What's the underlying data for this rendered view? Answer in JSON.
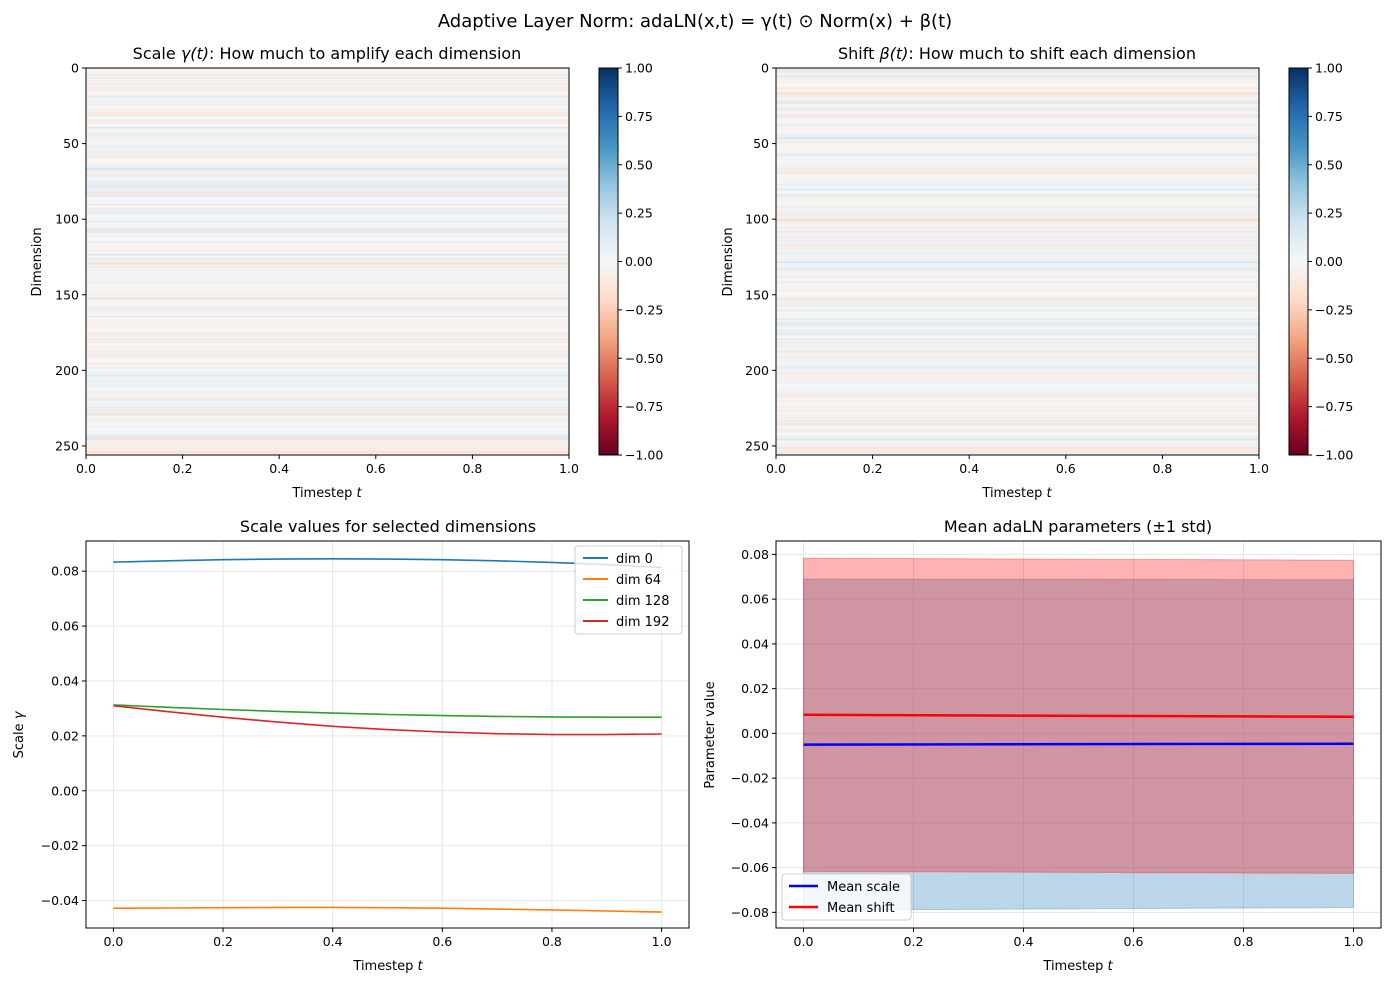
{
  "suptitle": "Adaptive Layer Norm: adaLN(x,t) = γ(t) ⊙ Norm(x) + β(t)",
  "colors": {
    "dim0": "#1f77b4",
    "dim64": "#ff7f0e",
    "dim128": "#2ca02c",
    "dim192": "#d62728",
    "mean_scale": "#0000ff",
    "mean_shift": "#ff0000",
    "band_scale": "#1f77b4",
    "band_shift": "#ff0000",
    "grid": "#e6e6e6"
  },
  "chart_data": [
    {
      "type": "heatmap",
      "title_prefix": "Scale ",
      "title_symbol": "γ(t)",
      "title_suffix": ": How much to amplify each dimension",
      "xlabel": "Timestep",
      "xlabel_var": "t",
      "ylabel": "Dimension",
      "xlim": [
        0.0,
        1.0
      ],
      "ylim": [
        256,
        0
      ],
      "xticks": [
        "0.0",
        "0.2",
        "0.4",
        "0.6",
        "0.8",
        "1.0"
      ],
      "yticks": [
        "0",
        "50",
        "100",
        "150",
        "200",
        "250"
      ],
      "colormap": "RdBu",
      "vmin": -1.0,
      "vmax": 1.0,
      "colorbar_ticks": [
        "1.00",
        "0.75",
        "0.50",
        "0.25",
        "0.00",
        "−0.25",
        "−0.50",
        "−0.75",
        "−1.00"
      ],
      "n_dims": 256,
      "value_std": 0.07,
      "seed": 17
    },
    {
      "type": "heatmap",
      "title_prefix": "Shift ",
      "title_symbol": "β(t)",
      "title_suffix": ": How much to shift each dimension",
      "xlabel": "Timestep",
      "xlabel_var": "t",
      "ylabel": "Dimension",
      "xlim": [
        0.0,
        1.0
      ],
      "ylim": [
        256,
        0
      ],
      "xticks": [
        "0.0",
        "0.2",
        "0.4",
        "0.6",
        "0.8",
        "1.0"
      ],
      "yticks": [
        "0",
        "50",
        "100",
        "150",
        "200",
        "250"
      ],
      "colormap": "RdBu",
      "vmin": -1.0,
      "vmax": 1.0,
      "colorbar_ticks": [
        "1.00",
        "0.75",
        "0.50",
        "0.25",
        "0.00",
        "−0.25",
        "−0.50",
        "−0.75",
        "−1.00"
      ],
      "n_dims": 256,
      "value_std": 0.07,
      "seed": 91
    },
    {
      "type": "line",
      "title": "Scale values for selected dimensions",
      "xlabel": "Timestep",
      "xlabel_var": "t",
      "ylabel": "Scale",
      "ylabel_var": "γ",
      "xlim": [
        -0.05,
        1.05
      ],
      "ylim": [
        -0.05,
        0.091
      ],
      "xticks": [
        "0.0",
        "0.2",
        "0.4",
        "0.6",
        "0.8",
        "1.0"
      ],
      "yticks": [
        "−0.04",
        "−0.02",
        "0.00",
        "0.02",
        "0.04",
        "0.06",
        "0.08"
      ],
      "grid": true,
      "legend": "top-right",
      "x": [
        0.0,
        0.1,
        0.2,
        0.3,
        0.4,
        0.5,
        0.6,
        0.7,
        0.8,
        0.9,
        1.0
      ],
      "series": [
        {
          "name": "dim 0",
          "values": [
            0.0833,
            0.0838,
            0.0842,
            0.0844,
            0.0845,
            0.0844,
            0.0842,
            0.0838,
            0.0832,
            0.0824,
            0.0813
          ]
        },
        {
          "name": "dim 64",
          "values": [
            -0.0428,
            -0.0427,
            -0.0426,
            -0.0425,
            -0.0425,
            -0.0426,
            -0.0428,
            -0.0431,
            -0.0434,
            -0.0438,
            -0.0442
          ]
        },
        {
          "name": "dim 128",
          "values": [
            0.0313,
            0.0304,
            0.0296,
            0.0289,
            0.0283,
            0.0278,
            0.0274,
            0.0271,
            0.0269,
            0.0268,
            0.0268
          ]
        },
        {
          "name": "dim 192",
          "values": [
            0.031,
            0.0288,
            0.0268,
            0.025,
            0.0235,
            0.0223,
            0.0214,
            0.0208,
            0.0205,
            0.0205,
            0.0207
          ]
        }
      ]
    },
    {
      "type": "area",
      "title": "Mean adaLN parameters (±1 std)",
      "xlabel": "Timestep",
      "xlabel_var": "t",
      "ylabel": "Parameter value",
      "xlim": [
        -0.05,
        1.05
      ],
      "ylim": [
        -0.087,
        0.086
      ],
      "xticks": [
        "0.0",
        "0.2",
        "0.4",
        "0.6",
        "0.8",
        "1.0"
      ],
      "yticks": [
        "−0.08",
        "−0.06",
        "−0.04",
        "−0.02",
        "0.00",
        "0.02",
        "0.04",
        "0.06",
        "0.08"
      ],
      "grid": true,
      "legend": "bottom-left",
      "x": [
        0.0,
        1.0
      ],
      "series": [
        {
          "name": "Mean scale",
          "mean": [
            -0.005,
            -0.0046
          ],
          "std": [
            0.074,
            0.0733
          ]
        },
        {
          "name": "Mean shift",
          "mean": [
            0.0083,
            0.0074
          ],
          "std": [
            0.07,
            0.07
          ]
        }
      ]
    }
  ]
}
